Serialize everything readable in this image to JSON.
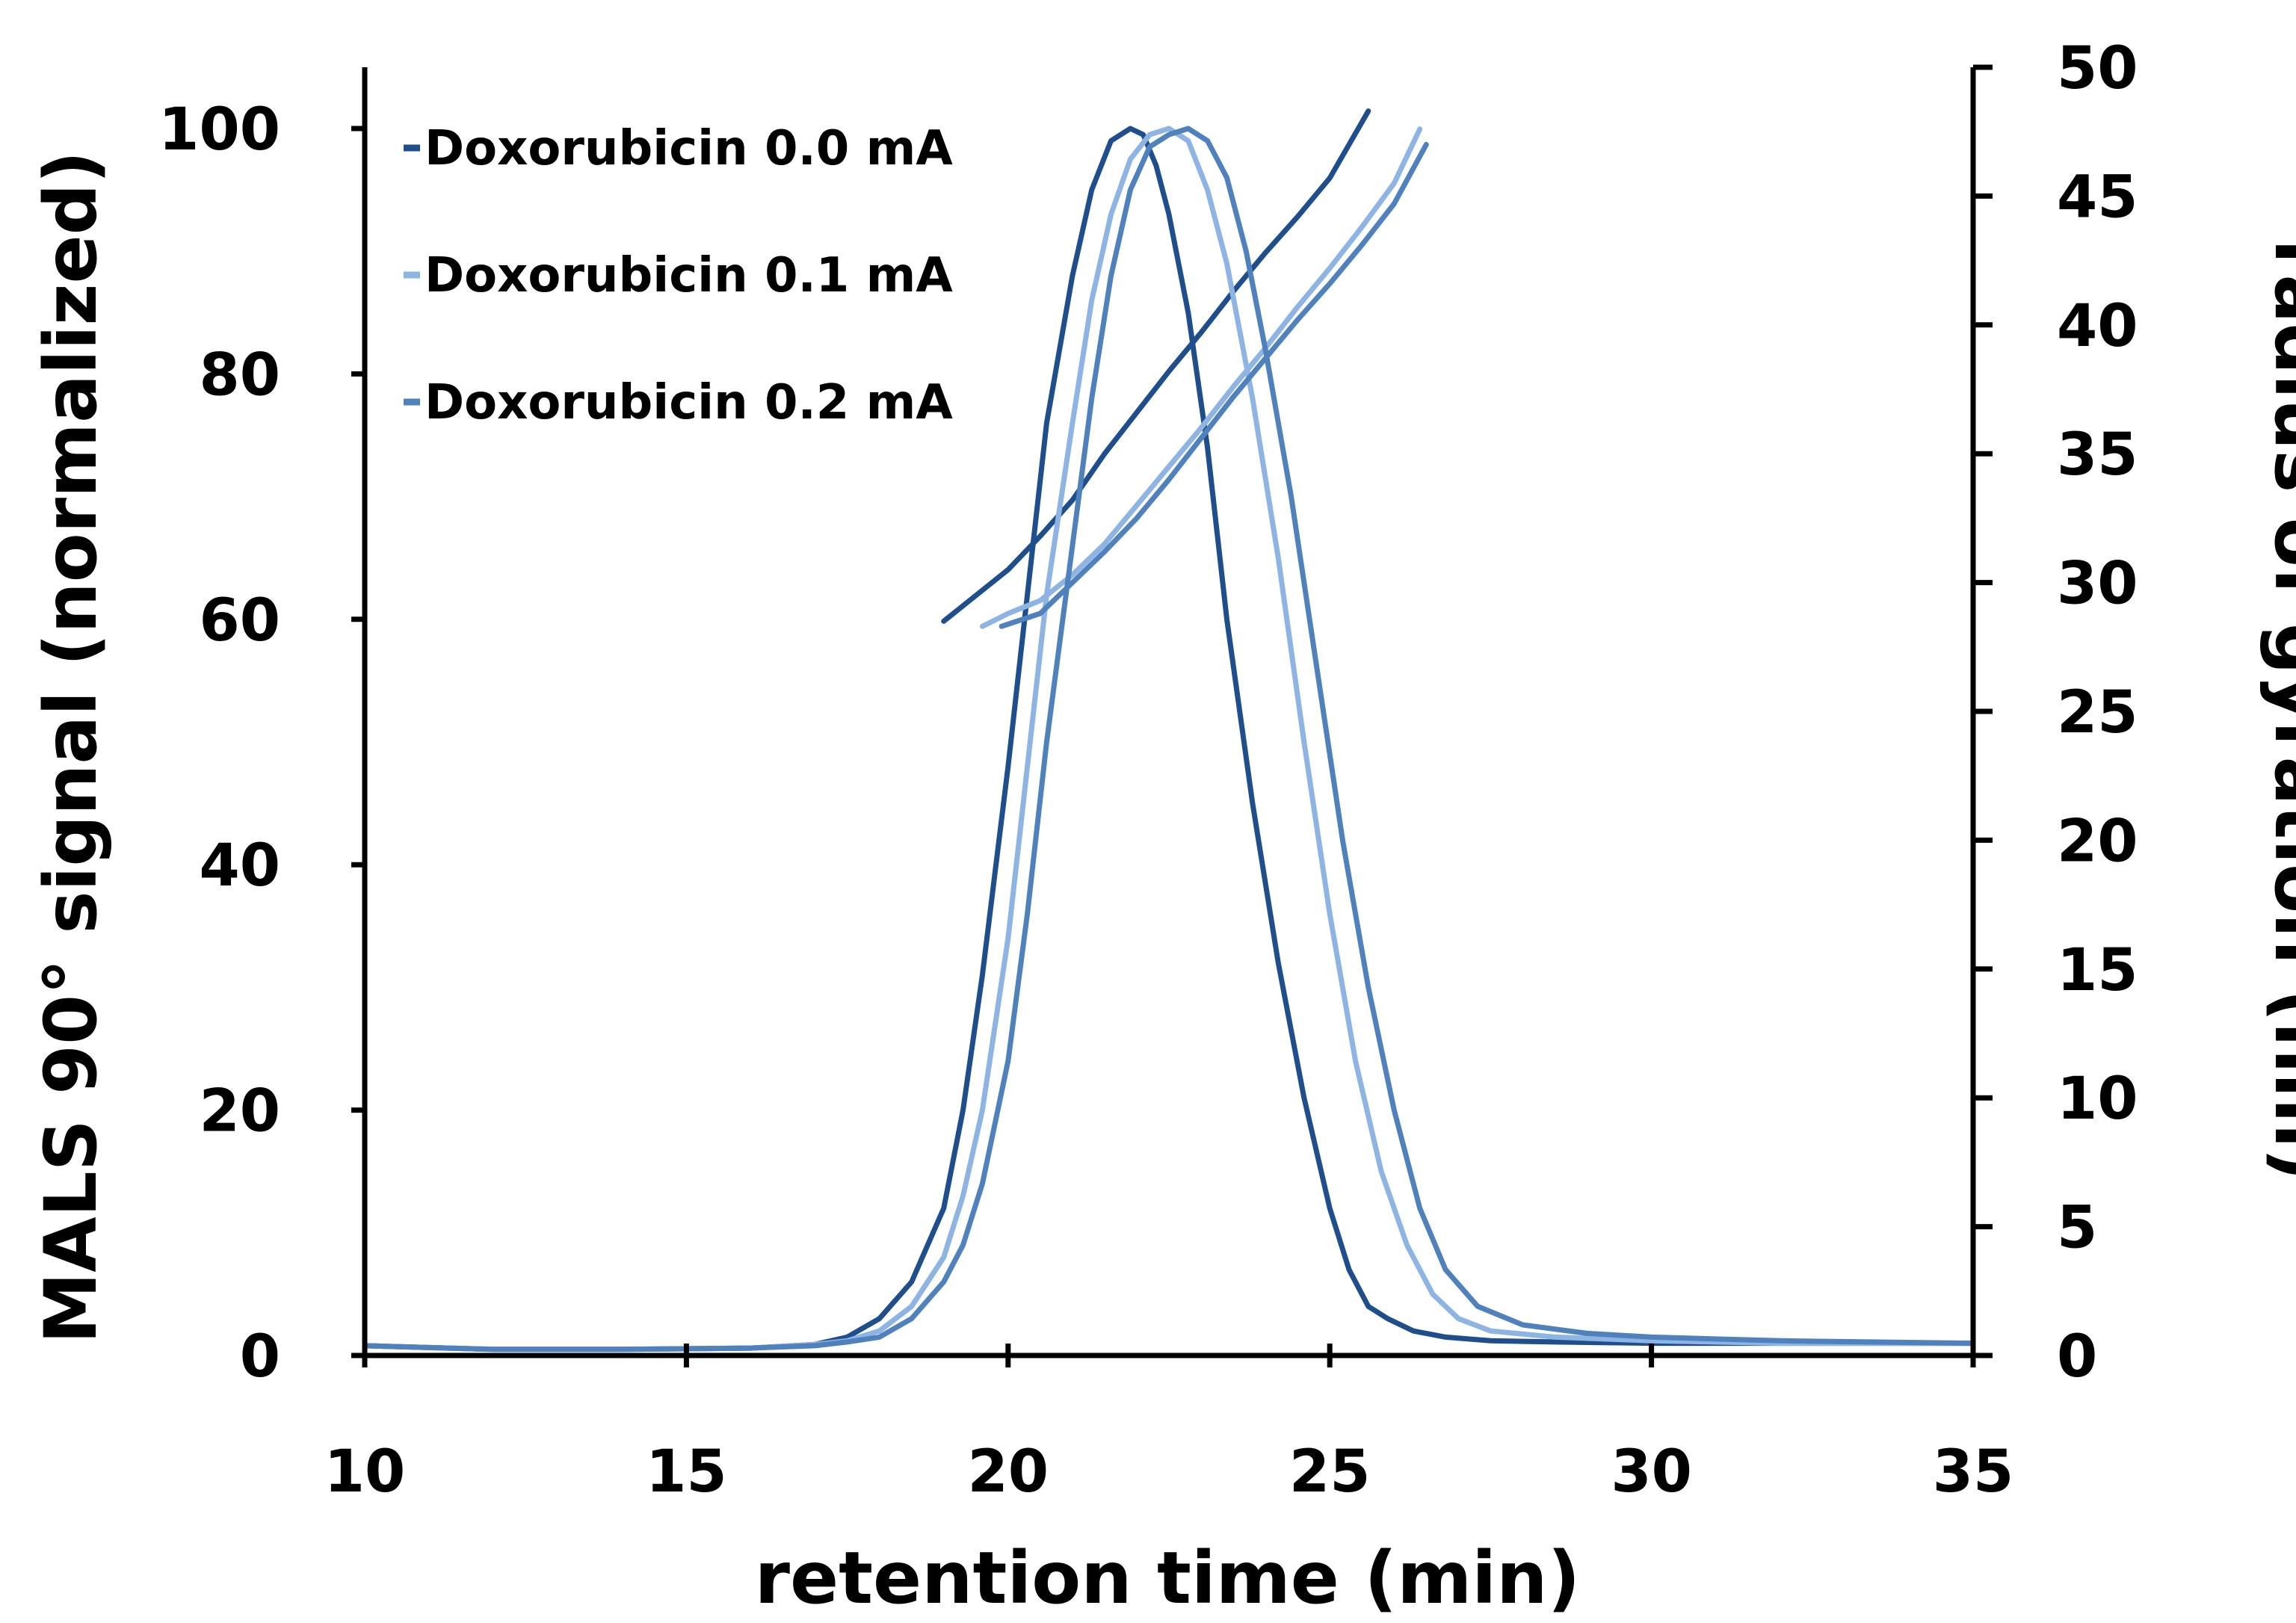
{
  "chart_data": {
    "type": "line",
    "xlabel": "retention time (min)",
    "ylabel": "MALS 90° signal (normalized)",
    "y2label": "radius of gyration (nm)",
    "xlim": [
      10,
      35
    ],
    "ylim": [
      0,
      100
    ],
    "y2lim": [
      0,
      50
    ],
    "x_ticks": [
      "10",
      "15",
      "20",
      "25",
      "30",
      "35"
    ],
    "y_ticks": [
      "0",
      "20",
      "40",
      "60",
      "80",
      "100"
    ],
    "y2_ticks": [
      "0",
      "5",
      "10",
      "15",
      "20",
      "25",
      "30",
      "35",
      "40",
      "45",
      "50"
    ],
    "legend_position": "top-left",
    "grid": false,
    "series": [
      {
        "name": "Doxorubicin 0.0 mA",
        "color": "#1f4e8c",
        "signal": {
          "x": [
            10,
            12,
            14,
            16,
            17,
            17.5,
            18,
            18.5,
            19,
            19.3,
            19.6,
            20,
            20.3,
            20.6,
            21,
            21.3,
            21.6,
            21.9,
            22.1,
            22.3,
            22.5,
            22.8,
            23.1,
            23.4,
            23.8,
            24.2,
            24.6,
            25,
            25.3,
            25.6,
            25.9,
            26.3,
            26.8,
            27.5,
            28.5,
            30,
            32,
            35
          ],
          "y": [
            0.8,
            0.5,
            0.5,
            0.6,
            0.9,
            1.5,
            3,
            6,
            12,
            20,
            31,
            48,
            62,
            76,
            88,
            95,
            99,
            100,
            99.5,
            97,
            93,
            85,
            74,
            60,
            45,
            32,
            21,
            12,
            7,
            4,
            3,
            2,
            1.5,
            1.2,
            1.1,
            1,
            1,
            1
          ]
        },
        "rg": {
          "x": [
            19,
            19.5,
            20,
            20.5,
            21,
            21.5,
            22,
            22.5,
            23,
            23.5,
            24,
            24.5,
            25,
            25.6
          ],
          "y": [
            28.5,
            29.5,
            30.5,
            31.8,
            33.2,
            35,
            36.6,
            38.2,
            39.7,
            41.3,
            42.8,
            44.2,
            45.7,
            48.3
          ]
        }
      },
      {
        "name": "Doxorubicin 0.1 mA",
        "color": "#8db4e2",
        "signal": {
          "x": [
            10,
            12,
            14,
            16,
            17,
            17.5,
            18,
            18.5,
            19,
            19.3,
            19.6,
            20,
            20.3,
            20.6,
            21,
            21.3,
            21.6,
            21.9,
            22.2,
            22.5,
            22.8,
            23.1,
            23.4,
            23.8,
            24.2,
            24.6,
            25,
            25.4,
            25.8,
            26.2,
            26.6,
            27,
            27.5,
            28.5,
            30,
            32,
            35
          ],
          "y": [
            0.8,
            0.5,
            0.5,
            0.6,
            0.9,
            1.2,
            2,
            4,
            8,
            13,
            20,
            34,
            48,
            62,
            76,
            86,
            93,
            97.5,
            99.5,
            100,
            99,
            95,
            89,
            78,
            65,
            50,
            36,
            24,
            15,
            9,
            5,
            3,
            2,
            1.5,
            1.2,
            1,
            1
          ]
        },
        "rg": {
          "x": [
            19.6,
            20,
            20.5,
            21,
            21.5,
            22,
            22.5,
            23,
            23.5,
            24,
            24.5,
            25,
            25.5,
            26,
            26.4
          ],
          "y": [
            28.3,
            28.8,
            29.3,
            30.3,
            31.5,
            33,
            34.5,
            36,
            37.6,
            39.1,
            40.7,
            42.2,
            43.8,
            45.5,
            47.6
          ]
        }
      },
      {
        "name": "Doxorubicin 0.2 mA",
        "color": "#4f81bd",
        "signal": {
          "x": [
            10,
            12,
            14,
            16,
            17,
            17.5,
            18,
            18.5,
            19,
            19.3,
            19.6,
            20,
            20.3,
            20.6,
            21,
            21.3,
            21.6,
            21.9,
            22.2,
            22.5,
            22.8,
            23.1,
            23.4,
            23.7,
            24,
            24.4,
            24.8,
            25.2,
            25.6,
            26,
            26.4,
            26.8,
            27.3,
            28,
            29,
            30,
            32,
            35
          ],
          "y": [
            0.8,
            0.5,
            0.5,
            0.6,
            0.8,
            1.1,
            1.5,
            3,
            6,
            9,
            14,
            24,
            36,
            50,
            66,
            78,
            88,
            95,
            98.5,
            99.5,
            100,
            99,
            96,
            90,
            82,
            70,
            56,
            42,
            30,
            20,
            12,
            7,
            4,
            2.5,
            1.8,
            1.5,
            1.2,
            1
          ]
        },
        "rg": {
          "x": [
            19.9,
            20.5,
            21,
            21.5,
            22,
            22.5,
            23,
            23.5,
            24,
            24.5,
            25,
            25.5,
            26,
            26.5
          ],
          "y": [
            28.3,
            28.8,
            30,
            31.2,
            32.5,
            34,
            35.6,
            37.2,
            38.7,
            40.2,
            41.6,
            43.1,
            44.7,
            47
          ]
        }
      }
    ]
  }
}
